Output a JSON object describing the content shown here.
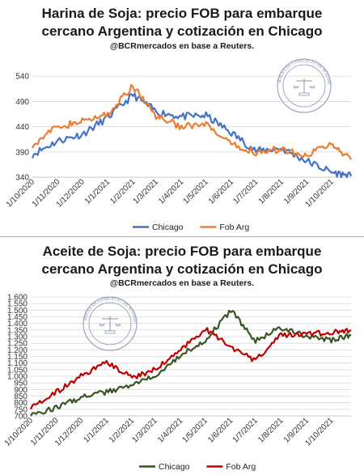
{
  "chart_data": [
    {
      "type": "line",
      "title": "Harina de Soja: precio FOB para embarque cercano Argentina y cotización en Chicago",
      "title_lines": [
        "Harina de Soja: precio FOB para embarque",
        "cercano  Argentina y cotización en Chicago"
      ],
      "subtitle": "@BCRmercados en base a Reuters.",
      "x": [
        "2020-10-01",
        "2020-11-01",
        "2020-12-01",
        "2021-01-01",
        "2021-02-01",
        "2021-03-01",
        "2021-04-01",
        "2021-05-01",
        "2021-06-01",
        "2021-07-01",
        "2021-08-01",
        "2021-09-01",
        "2021-10-01",
        "2021-10-25"
      ],
      "xticks": [
        "1/10/2020",
        "1/11/2020",
        "1/12/2020",
        "1/1/2021",
        "1/2/2021",
        "1/3/2021",
        "1/4/2021",
        "1/5/2021",
        "1/6/2021",
        "1/7/2021",
        "1/8/2021",
        "1/9/2021",
        "1/10/2021"
      ],
      "yticks": [
        "340",
        "390",
        "440",
        "490",
        "540"
      ],
      "ylim": [
        340,
        550
      ],
      "grid": "horizontal",
      "legend": "bottom",
      "series": [
        {
          "name": "Chicago",
          "color": "#4472c4",
          "values": [
            385,
            412,
            425,
            458,
            503,
            470,
            460,
            462,
            428,
            392,
            397,
            372,
            350,
            342
          ]
        },
        {
          "name": "Fob Arg",
          "color": "#ed7d31",
          "values": [
            405,
            440,
            450,
            465,
            520,
            462,
            440,
            443,
            403,
            390,
            395,
            385,
            405,
            375
          ]
        }
      ]
    },
    {
      "type": "line",
      "title": "Aceite de Soja: precio FOB para embarque cercano Argentina y cotización en Chicago",
      "title_lines": [
        "Aceite de Soja: precio FOB para embarque",
        "cercano  Argentina y cotización en Chicago"
      ],
      "subtitle": "@BCRmercados en base a Reuters.",
      "x": [
        "2020-10-01",
        "2020-11-01",
        "2020-12-01",
        "2021-01-01",
        "2021-02-01",
        "2021-03-01",
        "2021-04-01",
        "2021-05-01",
        "2021-06-01",
        "2021-07-01",
        "2021-08-01",
        "2021-09-01",
        "2021-10-01",
        "2021-10-25"
      ],
      "xticks": [
        "1/10/2020",
        "1/11/2020",
        "1/12/2020",
        "1/1/2021",
        "1/2/2021",
        "1/3/2021",
        "1/4/2021",
        "1/5/2021",
        "1/6/2021",
        "1/7/2021",
        "1/8/2021",
        "1/9/2021",
        "1/10/2021"
      ],
      "yticks": [
        "700",
        "750",
        "800",
        "850",
        "900",
        "950",
        "1.000",
        "1.050",
        "1.100",
        "1.150",
        "1.200",
        "1.250",
        "1.300",
        "1.350",
        "1.400",
        "1.450",
        "1.500",
        "1.550",
        "1.600"
      ],
      "ylim": [
        700,
        1600
      ],
      "grid": "horizontal",
      "legend": "bottom",
      "series": [
        {
          "name": "Chicago",
          "color": "#375623",
          "values": [
            710,
            760,
            840,
            880,
            930,
            1010,
            1160,
            1270,
            1500,
            1270,
            1370,
            1300,
            1270,
            1310
          ]
        },
        {
          "name": "Fob Arg",
          "color": "#c00000",
          "values": [
            770,
            880,
            1000,
            1110,
            990,
            1050,
            1200,
            1360,
            1220,
            1120,
            1310,
            1320,
            1330,
            1350
          ]
        }
      ]
    }
  ],
  "seal": {
    "text": "BOLSA DE COMERCIO DE ROSARIO"
  }
}
